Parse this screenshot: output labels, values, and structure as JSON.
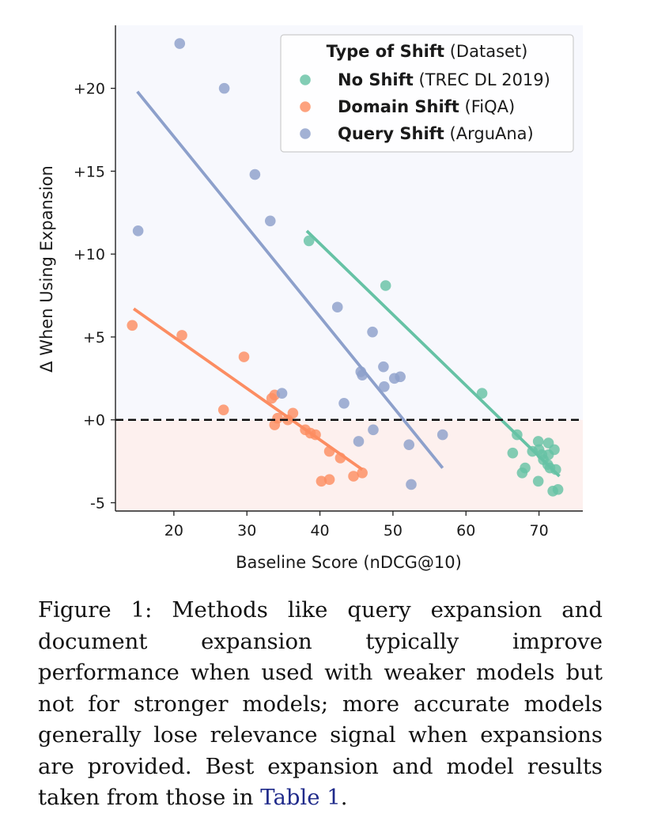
{
  "chart_data": {
    "type": "scatter",
    "title": "",
    "xlabel": "Baseline Score (nDCG@10)",
    "ylabel": "Δ When Using Expansion",
    "xlim": [
      12,
      76
    ],
    "ylim": [
      -5.5,
      23.8
    ],
    "xticks": [
      20,
      30,
      40,
      50,
      60,
      70
    ],
    "xtick_labels": [
      "20",
      "30",
      "40",
      "50",
      "60",
      "70"
    ],
    "yticks": [
      -5,
      0,
      5,
      10,
      15,
      20
    ],
    "ytick_labels": [
      "-5",
      "+0",
      "+5",
      "+10",
      "+15",
      "+20"
    ],
    "reference_line": {
      "y": 0,
      "style": "dashed"
    },
    "negative_region_color": "#fdf0ee",
    "positive_region_color": "#f7f8fd",
    "legend": {
      "title_bold": "Type of Shift",
      "title_rest": " (Dataset)",
      "placement": "top-right"
    },
    "series": [
      {
        "name": "No Shift",
        "dataset": " (TREC DL 2019)",
        "color": "#66c2a5",
        "points": [
          [
            38.5,
            10.8
          ],
          [
            49,
            8.1
          ],
          [
            62.2,
            1.6
          ],
          [
            67,
            -0.9
          ],
          [
            66.4,
            -2
          ],
          [
            68.1,
            -2.9
          ],
          [
            67.7,
            -3.2
          ],
          [
            69.1,
            -1.9
          ],
          [
            69.9,
            -1.3
          ],
          [
            70,
            -1.8
          ],
          [
            70.4,
            -2.1
          ],
          [
            70.6,
            -2.4
          ],
          [
            71.3,
            -1.4
          ],
          [
            71.3,
            -2.1
          ],
          [
            72.1,
            -1.8
          ],
          [
            71.2,
            -2.7
          ],
          [
            71.5,
            -2.9
          ],
          [
            72.3,
            -3
          ],
          [
            69.9,
            -3.7
          ],
          [
            71.9,
            -4.3
          ],
          [
            72.6,
            -4.2
          ]
        ],
        "fit": [
          [
            38.2,
            11.4
          ],
          [
            72.8,
            -3.4
          ]
        ]
      },
      {
        "name": "Domain Shift",
        "dataset": " (FiQA)",
        "color": "#fc8d62",
        "points": [
          [
            14.3,
            5.7
          ],
          [
            21.1,
            5.1
          ],
          [
            26.8,
            0.6
          ],
          [
            29.6,
            3.8
          ],
          [
            33.4,
            1.3
          ],
          [
            33.8,
            1.5
          ],
          [
            33.8,
            -0.3
          ],
          [
            34.2,
            0.1
          ],
          [
            35.6,
            0
          ],
          [
            36.3,
            0.4
          ],
          [
            38,
            -0.6
          ],
          [
            38.7,
            -0.8
          ],
          [
            39.4,
            -0.9
          ],
          [
            41.3,
            -1.9
          ],
          [
            42.8,
            -2.3
          ],
          [
            40.2,
            -3.7
          ],
          [
            41.3,
            -3.6
          ],
          [
            44.6,
            -3.4
          ],
          [
            45.8,
            -3.2
          ]
        ],
        "fit": [
          [
            14.5,
            6.7
          ],
          [
            45.8,
            -3
          ]
        ]
      },
      {
        "name": "Query Shift",
        "dataset": " (ArguAna)",
        "color": "#8da0cb",
        "points": [
          [
            20.8,
            22.7
          ],
          [
            26.9,
            20
          ],
          [
            31.1,
            14.8
          ],
          [
            33.2,
            12
          ],
          [
            15.1,
            11.4
          ],
          [
            42.4,
            6.8
          ],
          [
            47.2,
            5.3
          ],
          [
            48.7,
            3.2
          ],
          [
            45.6,
            2.9
          ],
          [
            45.8,
            2.7
          ],
          [
            50.2,
            2.5
          ],
          [
            51,
            2.6
          ],
          [
            48.8,
            2
          ],
          [
            34.8,
            1.6
          ],
          [
            43.3,
            1
          ],
          [
            47.3,
            -0.6
          ],
          [
            45.3,
            -1.3
          ],
          [
            52.2,
            -1.5
          ],
          [
            56.8,
            -0.9
          ],
          [
            52.5,
            -3.9
          ]
        ],
        "fit": [
          [
            15,
            19.8
          ],
          [
            56.8,
            -2.9
          ]
        ]
      }
    ]
  },
  "caption": {
    "text": "Figure 1: Methods like query expansion and document expansion typically improve performance when used with weaker models but not for stronger models; more accurate models generally lose relevance signal when expansions are provided.  Best expansion and model results taken from those in ",
    "link_text": "Table 1",
    "end": "."
  }
}
